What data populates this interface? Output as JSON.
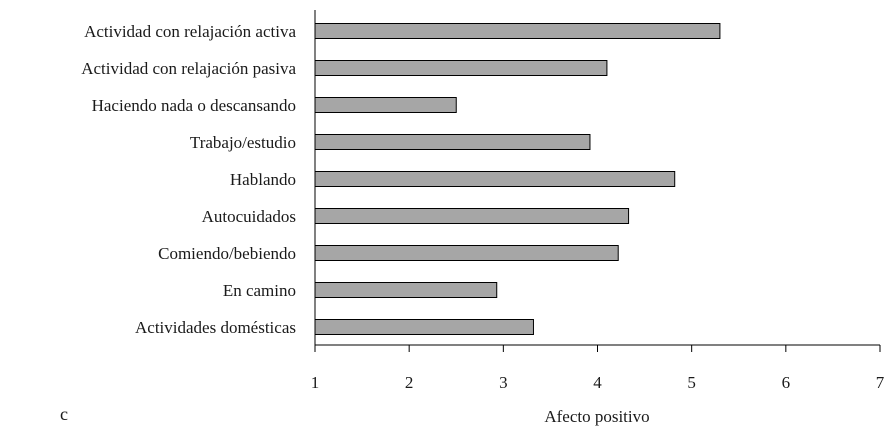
{
  "chart_data": {
    "type": "bar",
    "orientation": "horizontal",
    "panel_tag": "c",
    "xlabel": "Afecto positivo",
    "xlim": [
      1,
      7
    ],
    "xticks": [
      1,
      2,
      3,
      4,
      5,
      6,
      7
    ],
    "grid": false,
    "bar_color": "#a6a6a6",
    "categories": [
      "Actividad con relajación activa",
      "Actividad con relajación pasiva",
      "Haciendo nada o descansando",
      "Trabajo/estudio",
      "Hablando",
      "Autocuidados",
      "Comiendo/bebiendo",
      "En camino",
      "Actividades domésticas"
    ],
    "values": [
      5.3,
      4.1,
      2.5,
      3.92,
      4.82,
      4.33,
      4.22,
      2.93,
      3.32
    ]
  }
}
